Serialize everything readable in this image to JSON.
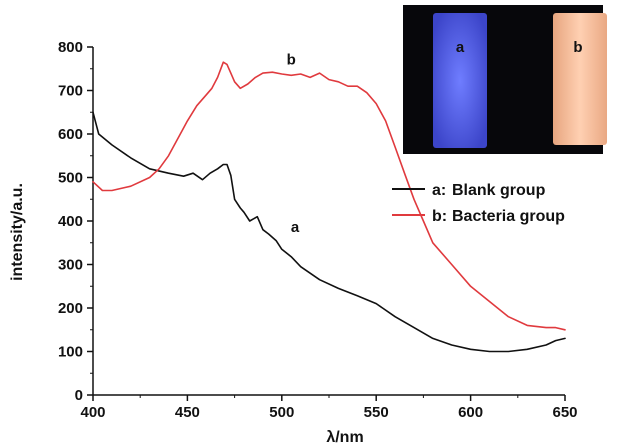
{
  "chart_data": {
    "type": "line",
    "xlabel": "λ/nm",
    "ylabel": "intensity/a.u.",
    "xlim": [
      400,
      650
    ],
    "ylim": [
      0,
      800
    ],
    "xticks": [
      400,
      450,
      500,
      550,
      600,
      650
    ],
    "yticks": [
      0,
      100,
      200,
      300,
      400,
      500,
      600,
      700,
      800
    ],
    "xtick_labels": [
      "400",
      "450",
      "500",
      "550",
      "600",
      "650"
    ],
    "ytick_labels": [
      "0",
      "100",
      "200",
      "300",
      "400",
      "500",
      "600",
      "700",
      "800"
    ],
    "grid": false,
    "legend_position": "right",
    "legend": [
      {
        "key": "a:",
        "label": "Blank group",
        "color": "#111111"
      },
      {
        "key": "b:",
        "label": "Bacteria group",
        "color": "#e03a3e"
      }
    ],
    "series": [
      {
        "name": "Blank group",
        "curve_label": "a",
        "color": "#111111",
        "x": [
          400,
          403,
          410,
          420,
          430,
          440,
          448,
          453,
          458,
          462,
          466,
          469,
          471,
          473,
          475,
          478,
          480,
          483,
          487,
          490,
          493,
          497,
          500,
          505,
          510,
          520,
          530,
          540,
          550,
          560,
          570,
          580,
          590,
          600,
          610,
          620,
          630,
          640,
          645,
          650
        ],
        "y": [
          650,
          600,
          575,
          545,
          520,
          510,
          503,
          510,
          495,
          510,
          520,
          530,
          530,
          505,
          450,
          430,
          420,
          400,
          410,
          380,
          370,
          355,
          335,
          318,
          295,
          265,
          245,
          228,
          210,
          180,
          155,
          130,
          115,
          105,
          100,
          100,
          105,
          115,
          125,
          130
        ]
      },
      {
        "name": "Bacteria group",
        "curve_label": "b",
        "color": "#e03a3e",
        "x": [
          400,
          405,
          410,
          420,
          430,
          435,
          440,
          445,
          450,
          455,
          460,
          463,
          466,
          469,
          471,
          473,
          475,
          478,
          482,
          486,
          490,
          495,
          500,
          505,
          510,
          515,
          520,
          525,
          530,
          535,
          540,
          545,
          550,
          555,
          560,
          565,
          570,
          575,
          580,
          590,
          600,
          610,
          620,
          630,
          640,
          645,
          650
        ],
        "y": [
          490,
          470,
          470,
          480,
          500,
          520,
          550,
          590,
          630,
          665,
          690,
          705,
          730,
          765,
          760,
          740,
          720,
          705,
          715,
          730,
          740,
          742,
          738,
          735,
          738,
          730,
          740,
          725,
          720,
          710,
          710,
          695,
          670,
          630,
          570,
          510,
          450,
          400,
          350,
          300,
          250,
          215,
          180,
          160,
          155,
          155,
          150
        ]
      }
    ],
    "annotations": [
      {
        "text": "a",
        "x": 507,
        "y": 375
      },
      {
        "text": "b",
        "x": 505,
        "y": 760
      }
    ],
    "inset_labels": [
      "a",
      "b"
    ]
  }
}
